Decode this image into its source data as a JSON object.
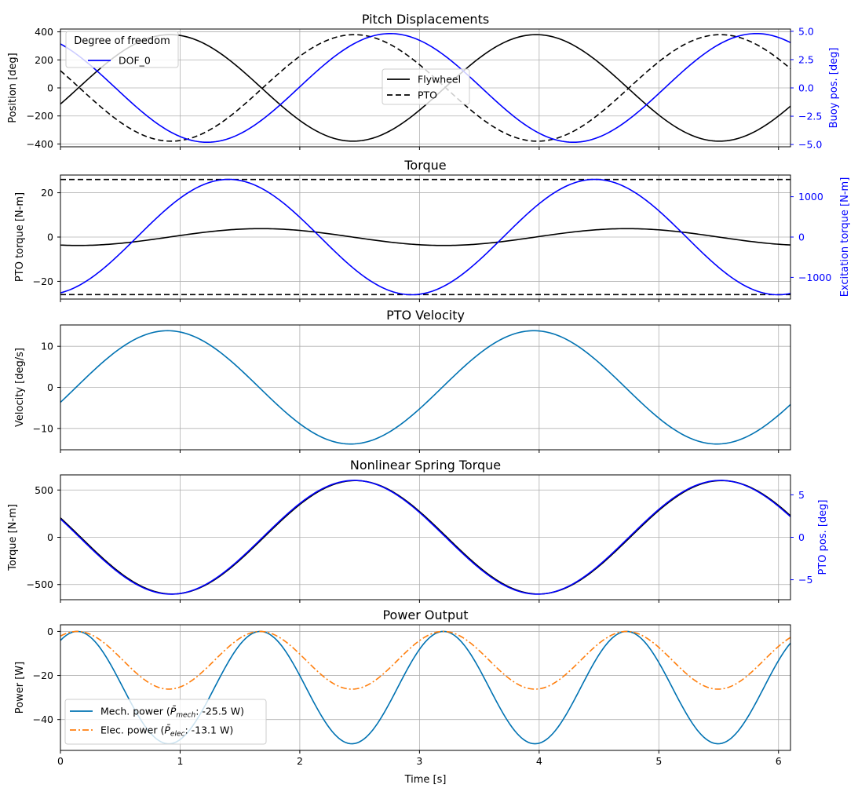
{
  "colors": {
    "black": "#000000",
    "blue": "#0000ff",
    "teal": "#0072b2",
    "orange": "#ff7f0e",
    "grid": "#b0b0b0"
  },
  "chart_data": [
    {
      "id": "p1",
      "type": "line",
      "title": "Pitch Displacements",
      "xlim": [
        0,
        6.1
      ],
      "xticks": [
        0,
        1,
        2,
        3,
        4,
        5,
        6
      ],
      "show_xticklabels": false,
      "xlabel": "",
      "ylabel": "Position [deg]",
      "ylim": [
        -420,
        420
      ],
      "yticks": [
        -400,
        -200,
        0,
        200,
        400
      ],
      "ytick_labels": [
        "−400",
        "−200",
        "0",
        "200",
        "400"
      ],
      "y2label": "Buoy pos. [deg]",
      "y2lim": [
        -5.2,
        5.2
      ],
      "y2ticks": [
        -5,
        -2.5,
        0,
        2.5,
        5
      ],
      "y2tick_labels": [
        "−5.0",
        "−2.5",
        "0.0",
        "2.5",
        "5.0"
      ],
      "grid": true,
      "series": [
        {
          "name": "Flywheel",
          "axis": "left",
          "color": "#000000",
          "dash": "",
          "fn": "sin",
          "amp": 380,
          "period": 3.06,
          "phase": 0.15,
          "offset": 0
        },
        {
          "name": "PTO",
          "axis": "left",
          "color": "#000000",
          "dash": "7,4",
          "fn": "sin",
          "amp": 380,
          "period": 3.06,
          "phase": -1.37,
          "offset": 0
        },
        {
          "name": "DOF_0",
          "axis": "right",
          "color": "#0000ff",
          "dash": "",
          "fn": "sin",
          "amp": 4.8,
          "period": 3.06,
          "phase": -1.07,
          "offset": 0
        }
      ],
      "legends": [
        {
          "title": "Degree of freedom",
          "position": "top-left",
          "entries": [
            {
              "label": "DOF_0",
              "color": "#0000ff",
              "dash": ""
            }
          ]
        },
        {
          "title": "",
          "position": "center",
          "entries": [
            {
              "label": "Flywheel",
              "color": "#000000",
              "dash": ""
            },
            {
              "label": "PTO",
              "color": "#000000",
              "dash": "7,4"
            }
          ]
        }
      ]
    },
    {
      "id": "p2",
      "type": "line",
      "title": "Torque",
      "xlim": [
        0,
        6.1
      ],
      "xticks": [
        0,
        1,
        2,
        3,
        4,
        5,
        6
      ],
      "show_xticklabels": false,
      "xlabel": "",
      "ylabel": "PTO torque [N-m]",
      "ylim": [
        -28,
        28
      ],
      "yticks": [
        -20,
        0,
        20
      ],
      "ytick_labels": [
        "−20",
        "0",
        "20"
      ],
      "y2label": "Excitation torque [N-m]",
      "y2lim": [
        -1537,
        1537
      ],
      "y2ticks": [
        -1000,
        0,
        1000
      ],
      "y2tick_labels": [
        "−1000",
        "0",
        "1000"
      ],
      "grid": true,
      "series": [
        {
          "name": "PTO torque",
          "axis": "left",
          "color": "#000000",
          "dash": "",
          "fn": "sin",
          "amp": 3.8,
          "period": 3.06,
          "phase": 0.91,
          "offset": 0
        },
        {
          "name": "Upper limit",
          "axis": "left",
          "color": "#000000",
          "dash": "7,4",
          "fn": "const",
          "amp": 0,
          "period": 1,
          "phase": 0,
          "offset": 26
        },
        {
          "name": "Lower limit",
          "axis": "left",
          "color": "#000000",
          "dash": "7,4",
          "fn": "const",
          "amp": 0,
          "period": 1,
          "phase": 0,
          "offset": -26
        },
        {
          "name": "Excitation torque",
          "axis": "right",
          "color": "#0000ff",
          "dash": "",
          "fn": "sin",
          "amp": 1430,
          "period": 3.06,
          "phase": 0.64,
          "offset": 0
        }
      ],
      "legends": []
    },
    {
      "id": "p3",
      "type": "line",
      "title": "PTO Velocity",
      "xlim": [
        0,
        6.1
      ],
      "xticks": [
        0,
        1,
        2,
        3,
        4,
        5,
        6
      ],
      "show_xticklabels": false,
      "xlabel": "",
      "ylabel": "Velocity [deg/s]",
      "ylim": [
        -15.2,
        15.2
      ],
      "yticks": [
        -10,
        0,
        10
      ],
      "ytick_labels": [
        "−10",
        "0",
        "10"
      ],
      "y2label": "",
      "grid": true,
      "series": [
        {
          "name": "PTO velocity",
          "axis": "left",
          "color": "#0072b2",
          "dash": "",
          "fn": "sin",
          "amp": 13.8,
          "period": 3.06,
          "phase": 0.13,
          "offset": 0
        }
      ],
      "legends": []
    },
    {
      "id": "p4",
      "type": "line",
      "title": "Nonlinear Spring Torque",
      "xlim": [
        0,
        6.1
      ],
      "xticks": [
        0,
        1,
        2,
        3,
        4,
        5,
        6
      ],
      "show_xticklabels": false,
      "xlabel": "",
      "ylabel": "Torque [N-m]",
      "ylim": [
        -660,
        660
      ],
      "yticks": [
        -500,
        0,
        500
      ],
      "ytick_labels": [
        "−500",
        "0",
        "500"
      ],
      "y2label": "PTO pos. [deg]",
      "y2lim": [
        -7.35,
        7.35
      ],
      "y2ticks": [
        -5,
        0,
        5
      ],
      "y2tick_labels": [
        "−5",
        "0",
        "5"
      ],
      "grid": true,
      "series": [
        {
          "name": "Spring torque",
          "axis": "left",
          "color": "#000000",
          "dash": "",
          "fn": "sin",
          "amp": 600,
          "period": 3.06,
          "phase": 1.7,
          "offset": 0
        },
        {
          "name": "PTO position",
          "axis": "right",
          "color": "#0000ff",
          "dash": "",
          "fn": "sin",
          "amp": 6.7,
          "period": 3.06,
          "phase": -1.37,
          "offset": 0
        }
      ],
      "legends": []
    },
    {
      "id": "p5",
      "type": "line",
      "title": "Power Output",
      "xlim": [
        0,
        6.1
      ],
      "xticks": [
        0,
        1,
        2,
        3,
        4,
        5,
        6
      ],
      "show_xticklabels": true,
      "xtick_labels": [
        "0",
        "1",
        "2",
        "3",
        "4",
        "5",
        "6"
      ],
      "xlabel": "Time [s]",
      "ylabel": "Power [W]",
      "ylim": [
        -54,
        3
      ],
      "yticks": [
        -40,
        -20,
        0
      ],
      "ytick_labels": [
        "−40",
        "−20",
        "0"
      ],
      "y2label": "",
      "grid": true,
      "series": [
        {
          "name": "Mech. power",
          "axis": "left",
          "color": "#0072b2",
          "dash": "",
          "fn": "cos",
          "amp": 25.5,
          "period": 1.53,
          "phase": 0.14,
          "offset": -25.5
        },
        {
          "name": "Elec. power",
          "axis": "left",
          "color": "#ff7f0e",
          "dash": "8,3,2,3",
          "fn": "cos",
          "amp": 13.1,
          "period": 1.53,
          "phase": 0.14,
          "offset": -13.1
        }
      ],
      "legends": [
        {
          "title": "",
          "position": "lower-left",
          "entries": [
            {
              "label": "Mech. power (",
              "sym": "P̄",
              "sub": "mech",
              "tail": ": -25.5 W)",
              "color": "#0072b2",
              "dash": ""
            },
            {
              "label": "Elec. power (",
              "sym": "P̄",
              "sub": "elec",
              "tail": ": -13.1 W)",
              "color": "#ff7f0e",
              "dash": "8,3,2,3"
            }
          ]
        }
      ]
    }
  ]
}
